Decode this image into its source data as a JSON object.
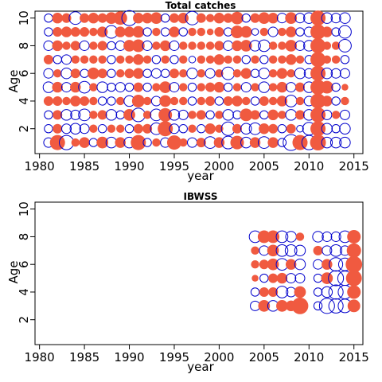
{
  "colors": {
    "positive": "#f05a40",
    "negative": "#0000cc",
    "axis": "#000000"
  },
  "chart_data": [
    {
      "type": "scatter",
      "subtype": "residual-bubble",
      "title": "Total catches",
      "xlabel": "year",
      "ylabel": "Age",
      "xlim": [
        1979.5,
        2016
      ],
      "ylim": [
        0.2,
        10.5
      ],
      "xticks": [
        1980,
        1985,
        1990,
        1995,
        2000,
        2005,
        2010,
        2015
      ],
      "yticks": [
        2,
        4,
        6,
        8,
        10
      ],
      "years": [
        1981,
        1982,
        1983,
        1984,
        1985,
        1986,
        1987,
        1988,
        1989,
        1990,
        1991,
        1992,
        1993,
        1994,
        1995,
        1996,
        1997,
        1998,
        1999,
        2000,
        2001,
        2002,
        2003,
        2004,
        2005,
        2006,
        2007,
        2008,
        2009,
        2010,
        2011,
        2012,
        2013,
        2014
      ],
      "ages": [
        1,
        2,
        3,
        4,
        5,
        6,
        7,
        8,
        9,
        10
      ],
      "residuals_by_age": {
        "1": [
          -0.4,
          1.0,
          -0.9,
          0.3,
          0.5,
          -0.3,
          0.6,
          -0.5,
          0.5,
          -0.5,
          1.0,
          -0.3,
          0.3,
          -0.4,
          0.9,
          0.3,
          -0.4,
          0.4,
          -0.6,
          0.5,
          -0.7,
          0.8,
          -0.5,
          0.5,
          -0.6,
          0.5,
          -0.3,
          -1.1,
          1.0,
          -0.9,
          1.1,
          -0.5,
          -0.5,
          -0.5
        ],
        "2": [
          -0.3,
          0.4,
          -0.4,
          -0.5,
          -0.4,
          0.3,
          -0.3,
          0.3,
          0.3,
          -0.3,
          0.4,
          0.4,
          -0.6,
          1.0,
          -0.4,
          -0.3,
          0.3,
          -0.3,
          0.5,
          0.3,
          -0.8,
          0.4,
          -0.5,
          -0.6,
          0.5,
          0.4,
          -0.3,
          0.4,
          -0.2,
          -0.7,
          1.0,
          -0.5,
          -0.3,
          -0.5
        ],
        "3": [
          -0.3,
          0.4,
          -0.5,
          -0.4,
          -0.6,
          0.3,
          0.4,
          -0.5,
          -0.3,
          0.6,
          -0.8,
          0.3,
          -0.6,
          0.8,
          -0.5,
          -0.4,
          0.3,
          0.4,
          -0.3,
          0.3,
          -0.5,
          -0.3,
          0.7,
          0.4,
          -0.3,
          0.5,
          0.3,
          -0.5,
          0.4,
          -0.5,
          1.0,
          -0.4,
          0.3,
          -0.4
        ],
        "4": [
          0.4,
          0.4,
          0.3,
          0.5,
          0.4,
          0.3,
          -0.3,
          -0.3,
          0.3,
          -0.5,
          0.7,
          0.3,
          -0.4,
          0.6,
          0.3,
          0.3,
          -0.3,
          0.3,
          0.4,
          -0.3,
          0.4,
          0.5,
          0.3,
          -0.3,
          0.4,
          0.3,
          0.5,
          -0.6,
          0.3,
          -0.4,
          1.0,
          0.5,
          -0.3,
          0.3
        ],
        "5": [
          -0.5,
          0.5,
          -0.4,
          0.5,
          -0.6,
          0.3,
          -0.5,
          -0.3,
          -0.4,
          -0.3,
          0.4,
          -0.3,
          0.3,
          0.6,
          -0.4,
          0.3,
          -0.3,
          0.3,
          0.4,
          0.5,
          -0.3,
          0.3,
          -0.4,
          0.3,
          -0.5,
          0.3,
          0.5,
          -0.4,
          0.4,
          -0.5,
          1.0,
          0.7,
          -0.3,
          0.2
        ],
        "6": [
          -0.4,
          0.3,
          -0.5,
          0.4,
          -0.3,
          0.6,
          0.4,
          -0.3,
          0.3,
          0.4,
          0.5,
          -0.3,
          -0.4,
          -0.3,
          0.4,
          0.3,
          -0.5,
          0.3,
          -0.4,
          0.3,
          -0.7,
          0.3,
          0.5,
          -0.3,
          -0.5,
          0.3,
          0.5,
          0.3,
          -0.5,
          -0.4,
          1.0,
          -0.5,
          -0.4,
          -0.4
        ],
        "7": [
          0.4,
          -0.3,
          -0.4,
          0.3,
          0.3,
          0.3,
          0.3,
          -0.3,
          0.3,
          0.3,
          0.5,
          0.3,
          -0.3,
          0.3,
          -0.3,
          0.3,
          -0.2,
          0.3,
          0.3,
          0.5,
          0.3,
          0.3,
          -0.3,
          0.3,
          -0.3,
          0.3,
          0.3,
          0.5,
          0.3,
          -0.3,
          1.0,
          0.3,
          0.3,
          -0.3
        ],
        "8": [
          -0.4,
          0.5,
          0.3,
          0.4,
          -0.4,
          0.3,
          0.4,
          -0.3,
          -0.4,
          0.6,
          0.7,
          -0.4,
          0.3,
          0.5,
          -0.4,
          0.3,
          0.3,
          0.3,
          0.3,
          0.4,
          -0.4,
          0.5,
          0.6,
          -0.5,
          -0.6,
          0.3,
          0.3,
          0.6,
          -0.4,
          -0.5,
          1.0,
          0.3,
          0.3,
          -0.7
        ],
        "9": [
          -0.3,
          0.4,
          0.5,
          0.4,
          0.4,
          0.3,
          0.5,
          -0.7,
          0.5,
          0.5,
          0.6,
          -0.3,
          0.3,
          -0.3,
          0.5,
          -0.3,
          0.3,
          0.3,
          0.2,
          0.4,
          -0.3,
          0.7,
          0.6,
          -0.2,
          0.3,
          -0.4,
          0.3,
          0.5,
          -0.3,
          -0.4,
          1.0,
          0.5,
          -0.3,
          -0.7
        ],
        "10": [
          -0.3,
          0.5,
          0.4,
          -0.7,
          0.4,
          0.5,
          0.4,
          0.6,
          0.8,
          -1.0,
          0.5,
          0.5,
          0.6,
          -0.3,
          0.4,
          0.5,
          -0.8,
          0.4,
          0.3,
          0.5,
          0.4,
          0.7,
          -0.3,
          0.4,
          0.6,
          0.5,
          -0.4,
          0.6,
          -0.4,
          -0.5,
          1.0,
          -0.5,
          -0.4,
          -0.5
        ]
      }
    },
    {
      "type": "scatter",
      "subtype": "residual-bubble",
      "title": "IBWSS",
      "xlabel": "year",
      "ylabel": "Age",
      "xlim": [
        1979.5,
        2016
      ],
      "ylim": [
        0.2,
        10.5
      ],
      "xticks": [
        1980,
        1985,
        1990,
        1995,
        2000,
        2005,
        2010,
        2015
      ],
      "yticks": [
        2,
        4,
        6,
        8,
        10
      ],
      "years": [
        2004,
        2005,
        2006,
        2007,
        2008,
        2009,
        2011,
        2012,
        2013,
        2014,
        2015
      ],
      "ages": [
        3,
        4,
        5,
        6,
        7,
        8
      ],
      "residuals_by_age": {
        "3": [
          -0.4,
          0.6,
          -0.5,
          0.6,
          0.5,
          1.2,
          -0.3,
          -1.0,
          -0.9,
          -0.8,
          0.7
        ],
        "4": [
          -0.3,
          0.4,
          0.4,
          -0.6,
          -0.4,
          0.6,
          -0.3,
          -0.5,
          -0.9,
          -0.8,
          0.8
        ],
        "5": [
          0.2,
          -0.3,
          0.4,
          0.5,
          -0.4,
          -0.4,
          -0.3,
          0.6,
          -1.0,
          -0.9,
          1.1
        ],
        "6": [
          0.3,
          0.4,
          0.6,
          -0.6,
          0.5,
          -0.5,
          -0.4,
          0.5,
          -0.8,
          -0.7,
          1.2
        ],
        "7": [
          0.3,
          -0.4,
          0.6,
          -0.6,
          -0.6,
          -0.5,
          0.4,
          -0.4,
          -0.6,
          -0.4,
          0.9
        ],
        "8": [
          -0.6,
          0.7,
          0.7,
          -0.6,
          -0.5,
          0.3,
          -0.5,
          -0.4,
          -0.4,
          -0.6,
          0.8
        ]
      }
    }
  ]
}
